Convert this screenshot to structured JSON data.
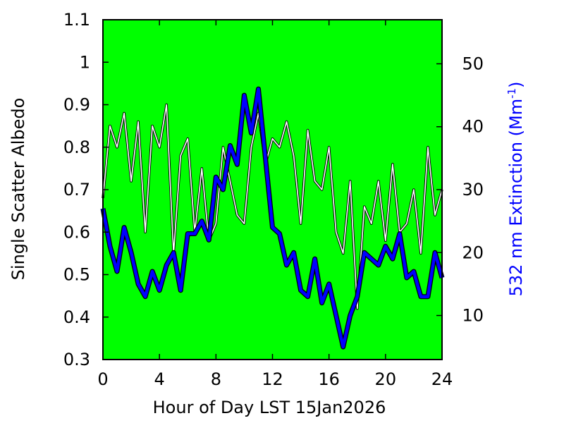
{
  "chart_data": {
    "type": "line",
    "title": "",
    "xlabel": "Hour of Day LST 15Jan2026",
    "ylabel_left": "Single Scatter Albedo",
    "ylabel_right_base": "532 nm Extinction (Mm",
    "ylabel_right_sup": "-1",
    "ylabel_right_close": ")",
    "xlim": [
      0,
      24
    ],
    "ylim_left": [
      0.3,
      1.1
    ],
    "ylim_right": [
      3,
      57
    ],
    "x_ticks": [
      0,
      4,
      8,
      12,
      16,
      20,
      24
    ],
    "x_tick_labels": [
      "0",
      "4",
      "8",
      "12",
      "16",
      "20",
      "24"
    ],
    "y_left_ticks": [
      0.3,
      0.4,
      0.5,
      0.6,
      0.7,
      0.8,
      0.9,
      1,
      1.1
    ],
    "y_left_tick_labels": [
      "0.3",
      "0.4",
      "0.5",
      "0.6",
      "0.7",
      "0.8",
      "0.9",
      "1",
      "1.1"
    ],
    "y_right_ticks": [
      10,
      20,
      30,
      40,
      50
    ],
    "y_right_tick_labels": [
      "10",
      "20",
      "30",
      "40",
      "50"
    ],
    "grid": false,
    "legend": "none",
    "colors": {
      "plot_background": "#00ff00",
      "albedo_line": "#ffffff",
      "albedo_outline": "#000000",
      "extinction_line": "#0000ff",
      "extinction_outline": "#000000",
      "right_axis_label": "#0000ff"
    },
    "series": [
      {
        "axis": "left",
        "x": [
          0,
          0.5,
          1,
          1.5,
          2,
          2.5,
          3,
          3.5,
          4,
          4.5,
          5,
          5.5,
          6,
          6.5,
          7,
          7.5,
          8,
          8.5,
          9,
          9.5,
          10,
          10.5,
          11,
          11.5,
          12,
          12.5,
          13,
          13.5,
          14,
          14.5,
          15,
          15.5,
          16,
          16.5,
          17,
          17.5,
          18,
          18.5,
          19,
          19.5,
          20,
          20.5,
          21,
          21.5,
          22,
          22.5,
          23,
          23.5,
          24
        ],
        "values": [
          0.68,
          0.85,
          0.8,
          0.88,
          0.72,
          0.86,
          0.6,
          0.85,
          0.8,
          0.9,
          0.55,
          0.78,
          0.82,
          0.6,
          0.75,
          0.58,
          0.62,
          0.8,
          0.72,
          0.64,
          0.62,
          0.8,
          0.88,
          0.76,
          0.82,
          0.8,
          0.86,
          0.78,
          0.62,
          0.84,
          0.72,
          0.7,
          0.8,
          0.6,
          0.55,
          0.72,
          0.42,
          0.66,
          0.62,
          0.72,
          0.58,
          0.76,
          0.6,
          0.62,
          0.7,
          0.55,
          0.8,
          0.64,
          0.7
        ]
      },
      {
        "axis": "right",
        "x": [
          0,
          0.5,
          1,
          1.5,
          2,
          2.5,
          3,
          3.5,
          4,
          4.5,
          5,
          5.5,
          6,
          6.5,
          7,
          7.5,
          8,
          8.5,
          9,
          9.5,
          10,
          10.5,
          11,
          11.5,
          12,
          12.5,
          13,
          13.5,
          14,
          14.5,
          15,
          15.5,
          16,
          16.5,
          17,
          17.5,
          18,
          18.5,
          19,
          19.5,
          20,
          20.5,
          21,
          21.5,
          22,
          22.5,
          23,
          23.5,
          24
        ],
        "values": [
          27,
          21,
          17,
          24,
          20,
          15,
          13,
          17,
          14,
          18,
          20,
          14,
          23,
          23,
          25,
          22,
          32,
          30,
          37,
          34,
          45,
          39,
          46,
          35,
          24,
          23,
          18,
          20,
          14,
          13,
          19,
          12,
          15,
          10,
          5,
          10,
          13,
          20,
          19,
          18,
          21,
          19,
          23,
          16,
          17,
          13,
          13,
          20,
          16
        ]
      }
    ]
  }
}
